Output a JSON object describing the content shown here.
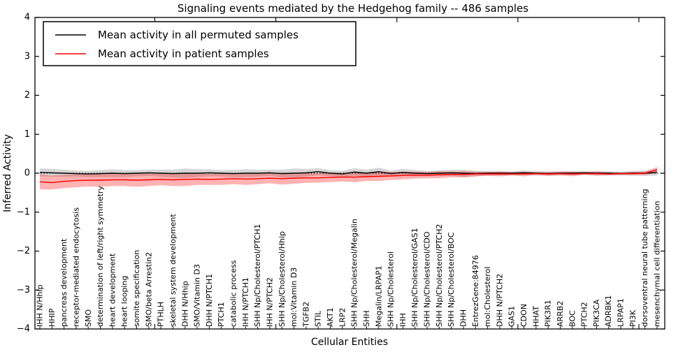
{
  "chart_data": {
    "type": "line",
    "title": "Signaling events mediated by the Hedgehog family -- 486 samples",
    "xlabel": "Cellular Entities",
    "ylabel": "Inferred Activity",
    "ylim": [
      -4,
      4
    ],
    "yticks": [
      -4,
      -3,
      -2,
      -1,
      0,
      1,
      2,
      3,
      4
    ],
    "grid": false,
    "legend_position": "upper left",
    "zero_line": {
      "style": "dotted",
      "color": "#000000",
      "y": 0
    },
    "colors": {
      "permuted_line": "#000000",
      "permuted_band": "rgba(0,0,0,0.16)",
      "patient_line": "#ff0000",
      "patient_band": "rgba(255,0,0,0.30)"
    },
    "categories": [
      "IHH N/Hhip",
      "HHIP",
      "pancreas development",
      "receptor-mediated endocytosis",
      "SMO",
      "determination of left/right symmetry",
      "heart development",
      "heart looping",
      "somite specification",
      "SMO/beta Arrestin2",
      "PTHLH",
      "skeletal system development",
      "DHH N/Hhip",
      "SMO/Vitamin D3",
      "DHH N/PTCH1",
      "PTCH1",
      "catabolic process",
      "IHH N/PTCH1",
      "SHH Np/Cholesterol/PTCH1",
      "IHH N/PTCH2",
      "SHH Np/Cholesterol/Hhip",
      "mol:Vitamin D3",
      "TGFB2",
      "STIL",
      "AKT1",
      "LRP2",
      "SHH Np/Cholesterol/Megalin",
      "SHH",
      "Megalin/LRPAP1",
      "SHH Np/Cholesterol",
      "IHH",
      "SHH Np/Cholesterol/GAS1",
      "SHH Np/Cholesterol/CDO",
      "SHH Np/Cholesterol/PTCH2",
      "SHH Np/Cholesterol/BOC",
      "DHH",
      "EntrezGene:84976",
      "mol:Cholesterol",
      "DHH N/PTCH2",
      "GAS1",
      "CDON",
      "HHAT",
      "PIK3R1",
      "ARRB2",
      "BOC",
      "PTCH2",
      "PIK3CA",
      "ADRBK1",
      "LRPAP1",
      "PI3K",
      "dorsoventral neural tube patterning",
      "mesenchymal cell differentiation"
    ],
    "series": [
      {
        "name": "Mean activity in all permuted samples",
        "color": "#000000",
        "values": [
          0.02,
          0.01,
          0.0,
          -0.01,
          -0.02,
          -0.01,
          0.0,
          -0.01,
          0.0,
          0.01,
          0.0,
          -0.01,
          0.0,
          0.0,
          0.01,
          0.0,
          -0.01,
          0.0,
          0.0,
          0.01,
          -0.01,
          0.0,
          0.01,
          0.04,
          0.0,
          -0.02,
          0.03,
          0.0,
          0.04,
          -0.01,
          0.02,
          0.0,
          -0.01,
          0.0,
          0.01,
          0.0,
          -0.01,
          0.0,
          0.0,
          0.0,
          0.01,
          0.0,
          -0.01,
          0.0,
          0.0,
          0.01,
          0.0,
          0.0,
          -0.01,
          0.0,
          0.0,
          0.02
        ],
        "band_high": [
          0.12,
          0.11,
          0.09,
          0.07,
          0.06,
          0.08,
          0.1,
          0.08,
          0.08,
          0.09,
          0.09,
          0.09,
          0.12,
          0.1,
          0.1,
          0.08,
          0.08,
          0.1,
          0.09,
          0.09,
          0.09,
          0.12,
          0.11,
          0.13,
          0.08,
          0.06,
          0.13,
          0.09,
          0.14,
          0.07,
          0.11,
          0.08,
          0.06,
          0.07,
          0.09,
          0.09,
          0.06,
          0.06,
          0.06,
          0.05,
          0.07,
          0.06,
          0.04,
          0.06,
          0.05,
          0.06,
          0.06,
          0.05,
          0.04,
          0.06,
          0.07,
          0.1
        ],
        "band_low": [
          -0.08,
          -0.09,
          -0.09,
          -0.09,
          -0.1,
          -0.1,
          -0.1,
          -0.1,
          -0.08,
          -0.07,
          -0.09,
          -0.11,
          -0.12,
          -0.1,
          -0.08,
          -0.08,
          -0.1,
          -0.1,
          -0.09,
          -0.07,
          -0.11,
          -0.12,
          -0.09,
          -0.05,
          -0.08,
          -0.1,
          -0.07,
          -0.09,
          -0.06,
          -0.09,
          -0.07,
          -0.08,
          -0.08,
          -0.07,
          -0.07,
          -0.09,
          -0.08,
          -0.06,
          -0.06,
          -0.05,
          -0.05,
          -0.06,
          -0.06,
          -0.06,
          -0.05,
          -0.04,
          -0.06,
          -0.05,
          -0.06,
          -0.06,
          -0.07,
          -0.06
        ]
      },
      {
        "name": "Mean activity in patient samples",
        "color": "#ff0000",
        "values": [
          -0.22,
          -0.24,
          -0.21,
          -0.19,
          -0.18,
          -0.18,
          -0.17,
          -0.17,
          -0.18,
          -0.17,
          -0.16,
          -0.17,
          -0.16,
          -0.15,
          -0.16,
          -0.15,
          -0.14,
          -0.15,
          -0.14,
          -0.13,
          -0.14,
          -0.13,
          -0.12,
          -0.12,
          -0.11,
          -0.1,
          -0.1,
          -0.09,
          -0.08,
          -0.07,
          -0.06,
          -0.05,
          -0.05,
          -0.04,
          -0.03,
          -0.03,
          -0.02,
          -0.02,
          -0.02,
          -0.02,
          -0.02,
          -0.01,
          -0.02,
          -0.01,
          -0.02,
          -0.01,
          -0.01,
          -0.02,
          -0.01,
          -0.01,
          0.0,
          0.09
        ],
        "band_high": [
          -0.03,
          -0.06,
          -0.04,
          -0.02,
          -0.02,
          -0.01,
          -0.01,
          -0.01,
          -0.01,
          -0.01,
          -0.01,
          -0.01,
          0.01,
          0.0,
          -0.02,
          0.0,
          0.0,
          0.0,
          0.0,
          0.0,
          0.01,
          0.01,
          0.01,
          0.0,
          0.01,
          0.01,
          0.03,
          0.02,
          0.04,
          0.03,
          0.04,
          0.04,
          0.03,
          0.05,
          0.04,
          0.05,
          0.04,
          0.03,
          0.04,
          0.02,
          0.04,
          0.02,
          0.03,
          0.03,
          0.04,
          0.02,
          0.04,
          0.02,
          0.02,
          0.03,
          0.04,
          0.16
        ],
        "band_low": [
          -0.41,
          -0.42,
          -0.38,
          -0.36,
          -0.34,
          -0.35,
          -0.33,
          -0.33,
          -0.35,
          -0.33,
          -0.31,
          -0.33,
          -0.33,
          -0.3,
          -0.3,
          -0.3,
          -0.28,
          -0.3,
          -0.28,
          -0.26,
          -0.29,
          -0.27,
          -0.25,
          -0.24,
          -0.23,
          -0.21,
          -0.23,
          -0.2,
          -0.2,
          -0.17,
          -0.16,
          -0.14,
          -0.13,
          -0.13,
          -0.1,
          -0.11,
          -0.08,
          -0.07,
          -0.08,
          -0.06,
          -0.08,
          -0.04,
          -0.07,
          -0.05,
          -0.08,
          -0.04,
          -0.06,
          -0.06,
          -0.04,
          -0.05,
          -0.04,
          0.02
        ]
      }
    ],
    "legend": [
      {
        "label": "Mean activity in all permuted samples",
        "color": "#000000"
      },
      {
        "label": "Mean activity in patient samples",
        "color": "#ff0000"
      }
    ]
  }
}
